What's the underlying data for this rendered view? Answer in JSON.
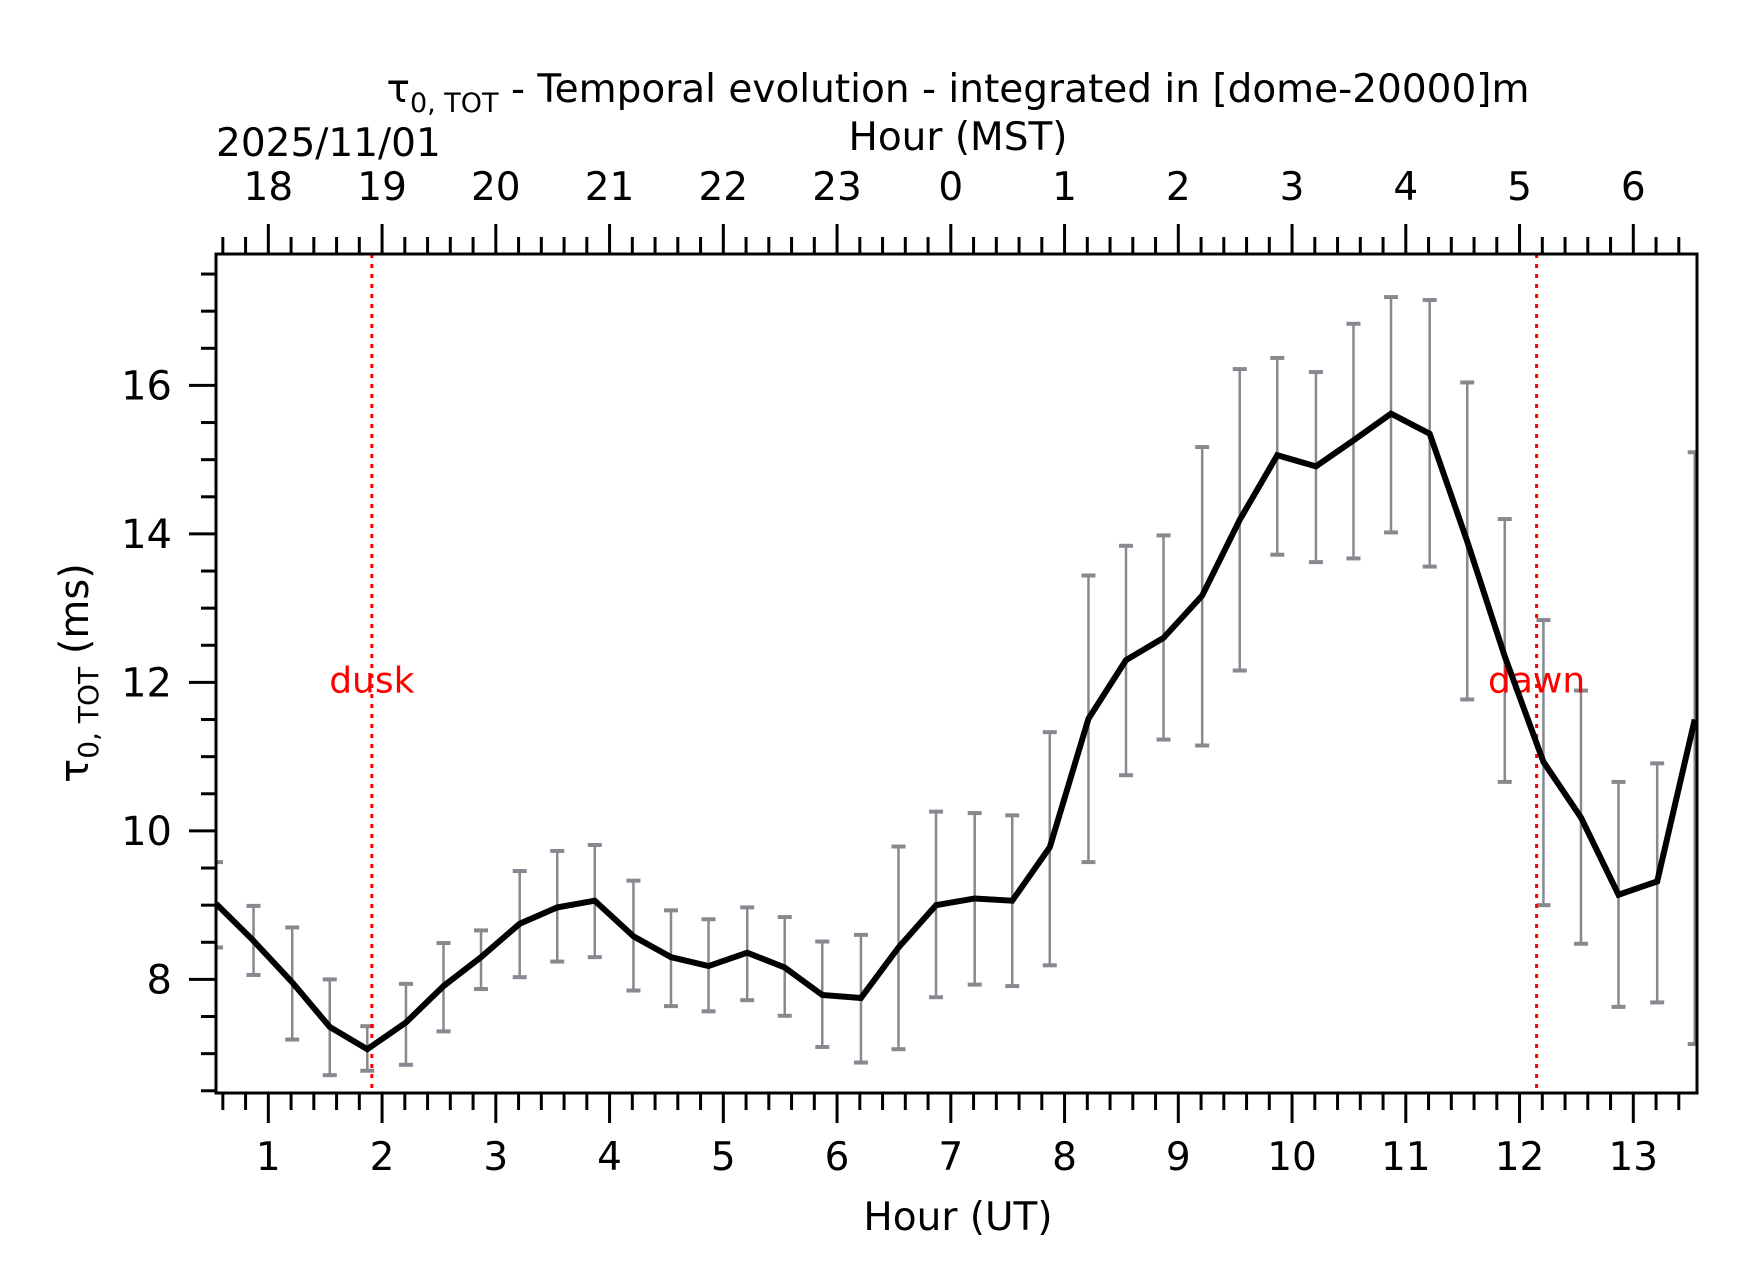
{
  "chart_data": {
    "type": "line",
    "title_symbol": "τ",
    "title_sub": "0, TOT",
    "title_rest": " - Temporal evolution - integrated in [dome-20000]m",
    "date_label": "2025/11/01",
    "top_xlabel": "Hour (MST)",
    "xlabel": "Hour (UT)",
    "ylabel_symbol": "τ",
    "ylabel_sub": "0, TOT",
    "ylabel_rest": " (ms)",
    "xlim": [
      0.54,
      13.56
    ],
    "ylim": [
      6.47,
      17.77
    ],
    "x_ticks": [
      1,
      2,
      3,
      4,
      5,
      6,
      7,
      8,
      9,
      10,
      11,
      12,
      13
    ],
    "x_tick_labels": [
      "1",
      "2",
      "3",
      "4",
      "5",
      "6",
      "7",
      "8",
      "9",
      "10",
      "11",
      "12",
      "13"
    ],
    "top_x_tick_labels": [
      "18",
      "19",
      "20",
      "21",
      "22",
      "23",
      "0",
      "1",
      "2",
      "3",
      "4",
      "5",
      "6"
    ],
    "y_ticks": [
      8,
      10,
      12,
      14,
      16
    ],
    "y_tick_labels": [
      "8",
      "10",
      "12",
      "14",
      "16"
    ],
    "grid": false,
    "line_color": "#000000",
    "errorbar_color": "#888890",
    "marker_color": "#ff0000",
    "x": [
      0.54,
      0.87,
      1.21,
      1.54,
      1.87,
      2.21,
      2.54,
      2.87,
      3.21,
      3.54,
      3.87,
      4.21,
      4.54,
      4.87,
      5.21,
      5.54,
      5.87,
      6.21,
      6.54,
      6.87,
      7.21,
      7.54,
      7.87,
      8.21,
      8.54,
      8.87,
      9.21,
      9.54,
      9.87,
      10.21,
      10.54,
      10.87,
      11.21,
      11.54,
      11.87,
      12.21,
      12.54,
      12.87,
      13.21,
      13.54
    ],
    "y": [
      9.02,
      8.52,
      7.96,
      7.36,
      7.06,
      7.42,
      7.91,
      8.3,
      8.75,
      8.97,
      9.06,
      8.58,
      8.3,
      8.18,
      8.36,
      8.16,
      7.79,
      7.75,
      8.43,
      9.0,
      9.09,
      9.06,
      9.78,
      11.51,
      12.3,
      12.6,
      13.17,
      14.19,
      15.06,
      14.91,
      15.26,
      15.62,
      15.35,
      13.9,
      12.35,
      10.93,
      10.18,
      9.14,
      9.32,
      11.5
    ],
    "y_upper": [
      9.58,
      8.99,
      8.7,
      8.0,
      7.37,
      7.94,
      8.49,
      8.66,
      9.46,
      9.73,
      9.81,
      9.33,
      8.93,
      8.81,
      8.97,
      8.84,
      8.51,
      8.6,
      9.79,
      10.26,
      10.24,
      10.21,
      11.33,
      13.44,
      13.84,
      13.98,
      15.17,
      16.22,
      16.37,
      16.18,
      16.83,
      17.19,
      17.15,
      16.04,
      14.2,
      12.84,
      11.89,
      10.66,
      10.91,
      15.1
    ],
    "y_lower": [
      8.43,
      8.06,
      7.19,
      6.71,
      6.77,
      6.85,
      7.3,
      7.87,
      8.03,
      8.24,
      8.3,
      7.85,
      7.64,
      7.57,
      7.72,
      7.51,
      7.09,
      6.88,
      7.06,
      7.76,
      7.93,
      7.91,
      8.19,
      9.58,
      10.75,
      11.23,
      11.15,
      12.16,
      13.72,
      13.62,
      13.67,
      14.02,
      13.56,
      11.77,
      10.66,
      9.0,
      8.48,
      7.63,
      7.69,
      7.13
    ],
    "markers": [
      {
        "label": "dusk",
        "x": 1.91
      },
      {
        "label": "dawn",
        "x": 12.15
      }
    ]
  }
}
